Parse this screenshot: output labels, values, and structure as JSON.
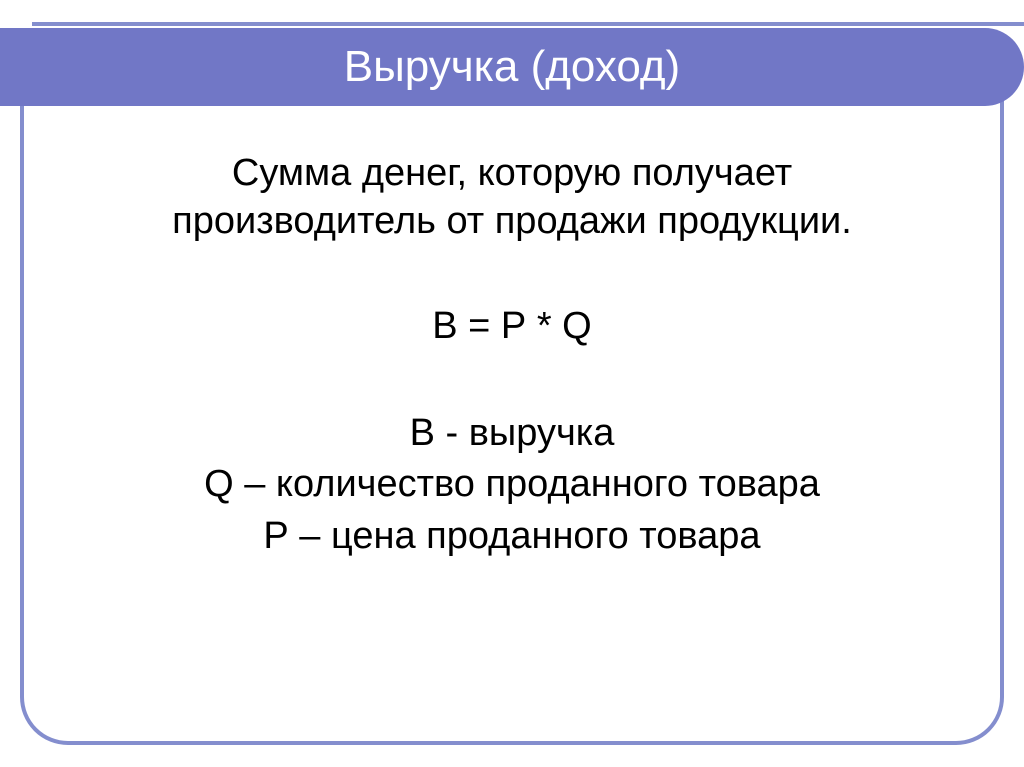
{
  "slide": {
    "title": "Выручка (доход)",
    "definition_line1": "Сумма денег, которую получает",
    "definition_line2": "производитель от продажи продукции.",
    "formula": "В = Р * Q",
    "legend": {
      "line1": "В - выручка",
      "line2": "Q – количество проданного товара",
      "line3": "Р – цена проданного товара"
    }
  },
  "style": {
    "accent_color": "#7177c6",
    "border_color": "#848ece",
    "text_color": "#000000",
    "title_color": "#ffffff",
    "title_fontsize": 44,
    "body_fontsize": 38,
    "background_color": "#ffffff",
    "border_radius": 48,
    "border_width": 4
  }
}
